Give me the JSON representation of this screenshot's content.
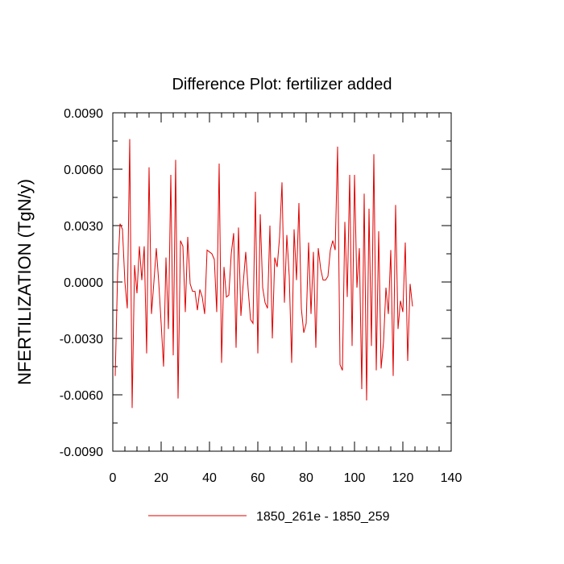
{
  "chart_data": {
    "type": "line",
    "title": "Difference Plot: fertilizer added",
    "xlabel": "",
    "ylabel": "NFERTILIZATION  (TgN/y)",
    "xlim": [
      0,
      140
    ],
    "ylim": [
      -0.009,
      0.009
    ],
    "x_ticks": [
      0,
      20,
      40,
      60,
      80,
      100,
      120,
      140
    ],
    "y_ticks": [
      -0.009,
      -0.006,
      -0.003,
      0.0,
      0.003,
      0.006,
      0.009
    ],
    "x_tick_labels": [
      "0",
      "20",
      "40",
      "60",
      "80",
      "100",
      "120",
      "140"
    ],
    "y_tick_labels": [
      "-0.0090",
      "-0.0060",
      "-0.0030",
      "0.0000",
      "0.0030",
      "0.0060",
      "0.0090"
    ],
    "grid": false,
    "legend_position": "bottom-center",
    "series": [
      {
        "name": "1850_261e - 1850_259",
        "color": "#e00000",
        "x_start": 1,
        "x_step": 1,
        "values": [
          -0.005,
          0.0005,
          0.0031,
          0.0028,
          0.0,
          -0.0014,
          0.0076,
          -0.0067,
          0.0009,
          -0.0006,
          0.0019,
          0.0001,
          0.0019,
          -0.0038,
          0.0061,
          -0.0017,
          0.0,
          0.0018,
          0.0,
          -0.0022,
          -0.0045,
          0.0013,
          -0.0025,
          0.0057,
          -0.0039,
          0.0065,
          -0.0062,
          0.0022,
          0.0019,
          -0.0016,
          0.0024,
          -0.0001,
          -0.0005,
          -0.0005,
          -0.0015,
          -0.0004,
          -0.0008,
          -0.0017,
          0.0017,
          0.0016,
          0.0015,
          0.0012,
          -0.0016,
          0.0063,
          -0.0043,
          0.0008,
          -0.0008,
          -0.0007,
          0.0015,
          0.0026,
          -0.0035,
          0.0029,
          -0.0018,
          0.0,
          0.0016,
          -0.0004,
          -0.002,
          -0.0022,
          0.0048,
          -0.0038,
          0.0036,
          -0.0003,
          -0.0011,
          -0.0014,
          0.003,
          -0.003,
          0.0013,
          0.0008,
          0.0024,
          0.0053,
          -0.0011,
          0.0025,
          0.0003,
          -0.0043,
          0.0028,
          0.0001,
          0.0042,
          -0.0014,
          -0.0027,
          -0.0022,
          0.0021,
          -0.0017,
          0.0016,
          -0.0035,
          0.0018,
          0.0007,
          0.0001,
          0.0001,
          0.0003,
          0.0017,
          0.0022,
          0.0017,
          0.0072,
          -0.0044,
          -0.0047,
          0.0032,
          -0.0008,
          0.0057,
          -0.0034,
          0.0057,
          -0.0003,
          0.0018,
          -0.0057,
          0.0047,
          -0.0063,
          0.0039,
          -0.0034,
          0.0068,
          -0.0047,
          0.0027,
          -0.0046,
          -0.0032,
          -0.0003,
          -0.0017,
          0.0017,
          -0.005,
          0.0041,
          -0.0025,
          -0.001,
          -0.0016,
          0.0021,
          -0.0042,
          -0.0001,
          -0.0013
        ]
      }
    ]
  }
}
